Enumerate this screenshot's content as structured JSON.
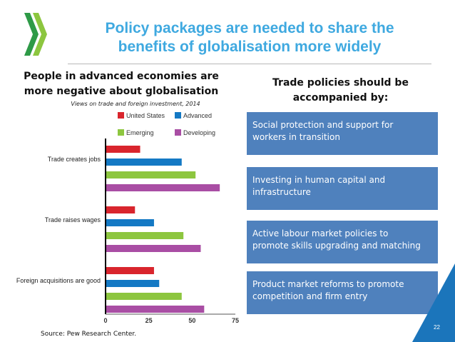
{
  "slide": {
    "title_line1": "Policy packages are needed to share the",
    "title_line2": "benefits of globalisation more widely",
    "page_number": "22",
    "source": "Source: Pew Research Center.",
    "logo_icon": "oecd-chevron-logo-icon",
    "accent_color": "#3fa9e0",
    "box_color": "#4f81bd",
    "corner_color": "#1b75bb"
  },
  "left": {
    "heading_line1": "People in advanced economies are",
    "heading_line2": "more negative about globalisation",
    "subtitle": "Views on trade and foreign investment, 2014"
  },
  "right": {
    "heading_line1": "Trade policies should be",
    "heading_line2": "accompanied by:",
    "boxes": [
      {
        "line1": "Social protection and support for",
        "line2": "workers in transition"
      },
      {
        "line1": "Investing in human capital and",
        "line2": "infrastructure"
      },
      {
        "line1": "Active labour market policies to",
        "line2": "promote skills upgrading and matching"
      },
      {
        "line1": "Product market reforms to promote",
        "line2": "competition and firm entry"
      }
    ]
  },
  "chart_data": {
    "type": "bar",
    "orientation": "horizontal",
    "title": "Views on trade and foreign investment, 2014",
    "categories": [
      "Trade creates jobs",
      "Trade raises wages",
      "Foreign acquisitions are good"
    ],
    "series": [
      {
        "name": "United States",
        "color": "#d9252d",
        "values": [
          20,
          17,
          28
        ]
      },
      {
        "name": "Advanced",
        "color": "#1479c4",
        "values": [
          44,
          28,
          31
        ]
      },
      {
        "name": "Emerging",
        "color": "#8dc63f",
        "values": [
          52,
          45,
          44
        ]
      },
      {
        "name": "Developing",
        "color": "#a94ea4",
        "values": [
          66,
          55,
          57
        ]
      }
    ],
    "xlim": [
      0,
      75
    ],
    "xticks": [
      "0",
      "25",
      "50",
      "75"
    ],
    "xlabel": "",
    "ylabel": "",
    "legend": "top",
    "grid": false
  }
}
